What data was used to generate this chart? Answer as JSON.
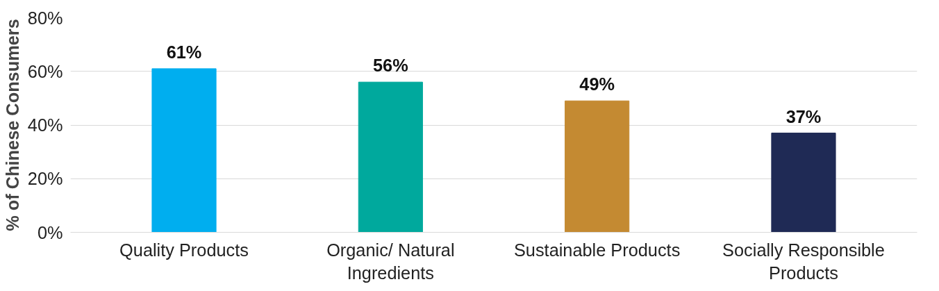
{
  "chart_data": {
    "type": "bar",
    "ylabel": "% of Chinese Consumers",
    "categories": [
      "Quality Products",
      "Organic/ Natural Ingredients",
      "Sustainable Products",
      "Socially Responsible Products"
    ],
    "values": [
      61,
      56,
      49,
      37
    ],
    "colors": [
      "#00aeef",
      "#00a99d",
      "#c48a32",
      "#1f2a55"
    ],
    "value_labels": [
      "61%",
      "56%",
      "49%",
      "37%"
    ],
    "ylim": [
      0,
      80
    ],
    "yticks": [
      {
        "value": 0,
        "label": "0%"
      },
      {
        "value": 20,
        "label": "20%"
      },
      {
        "value": 40,
        "label": "40%"
      },
      {
        "value": 60,
        "label": "60%"
      },
      {
        "value": 80,
        "label": "80%"
      }
    ],
    "grid": "y"
  }
}
